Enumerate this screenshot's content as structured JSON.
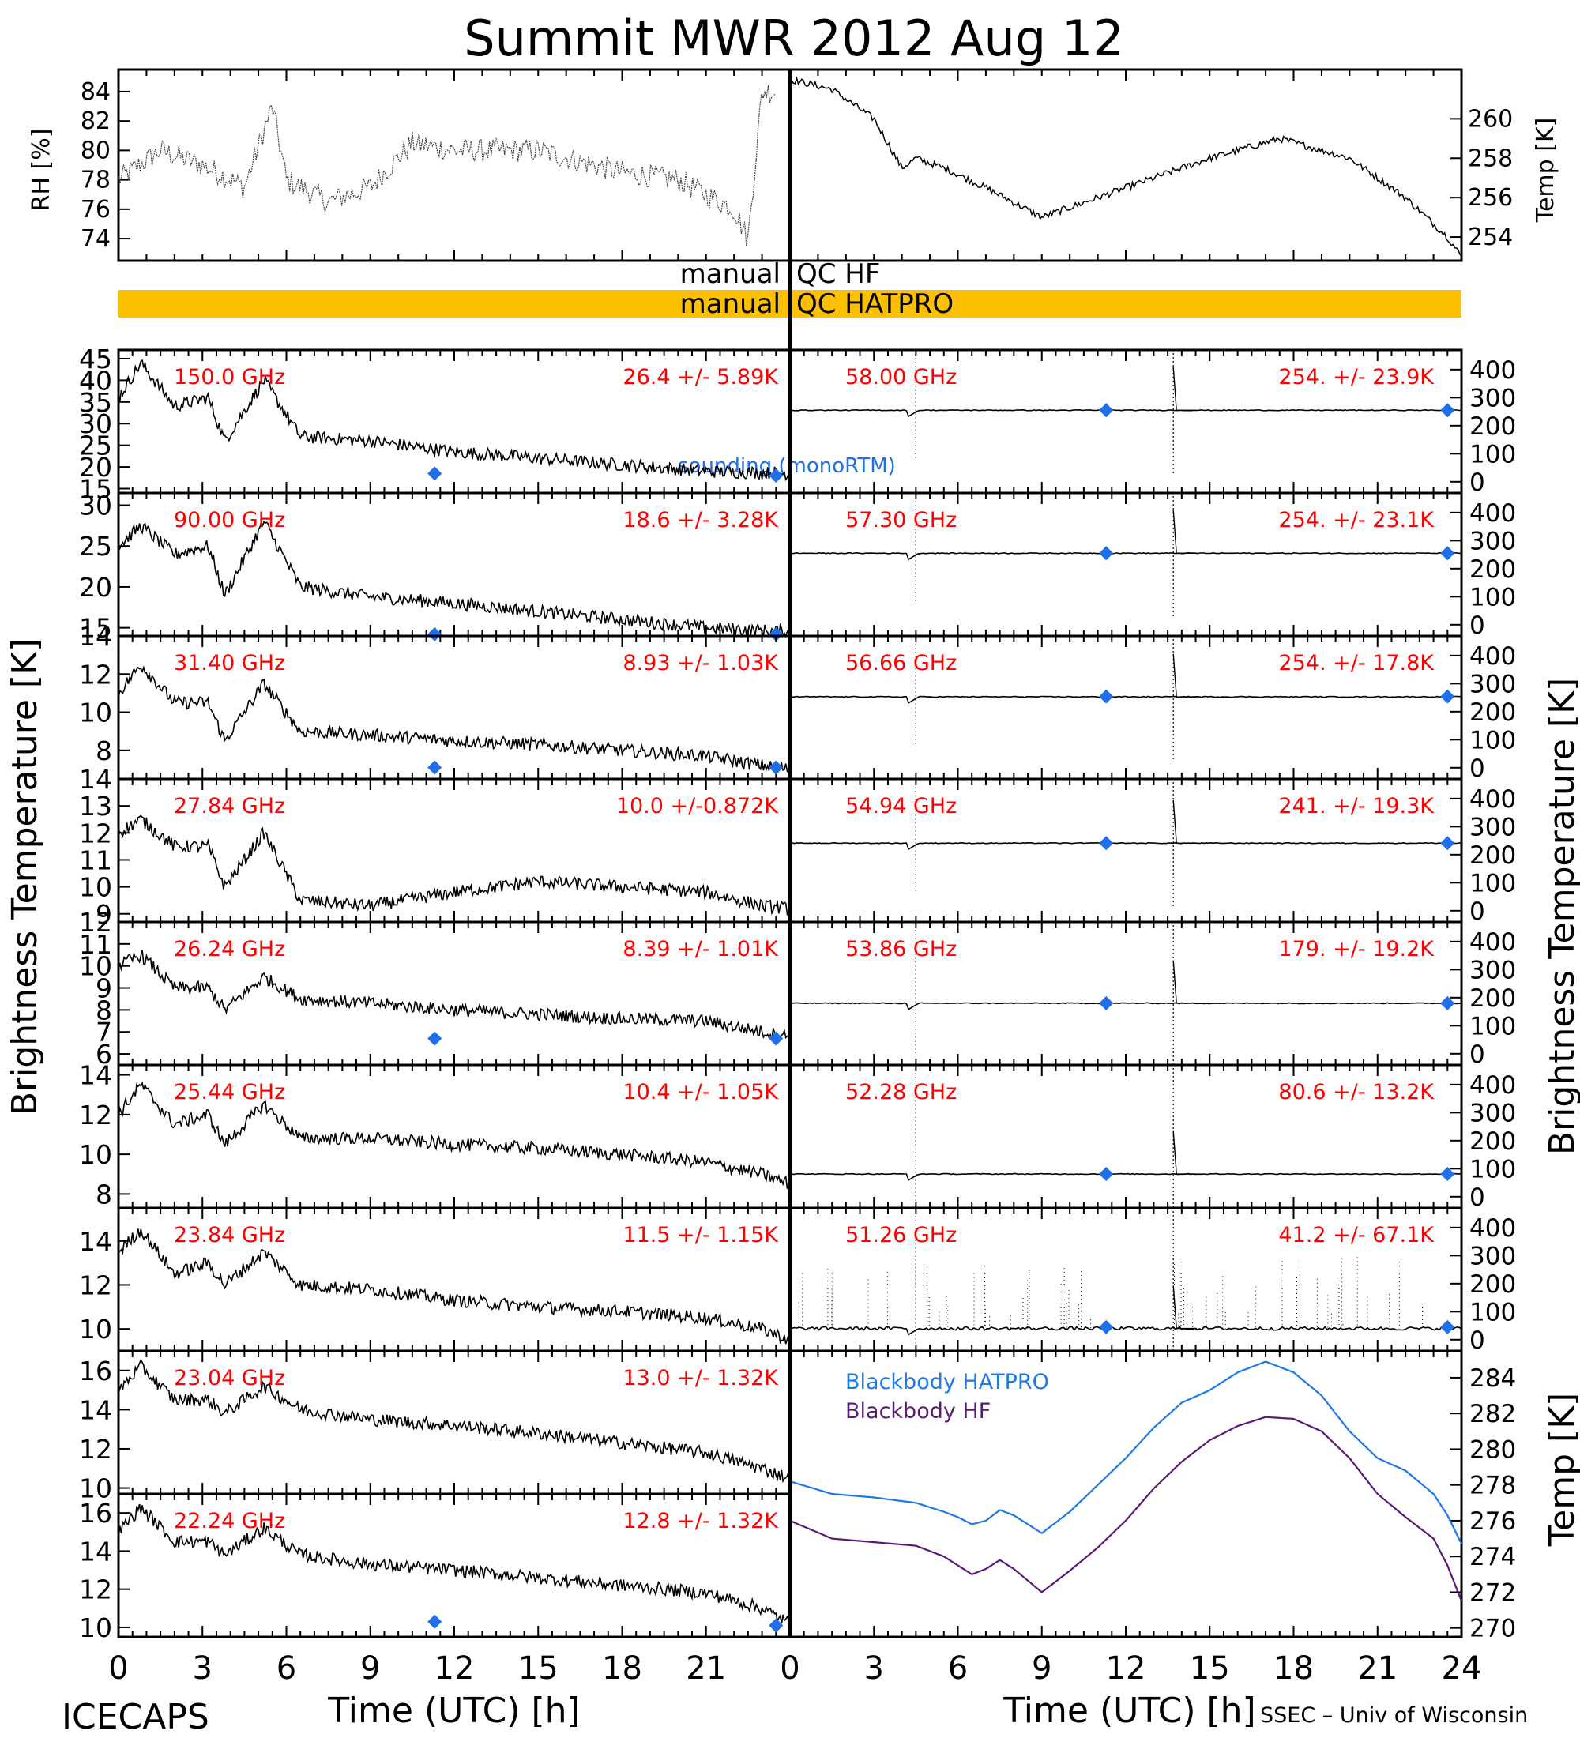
{
  "title": "Summit MWR 2012 Aug 12",
  "footer_left": "ICECAPS",
  "footer_right": "SSEC – Univ of Wisconsin",
  "colors": {
    "label": "#ff0000",
    "sounding": "#1e6fe8",
    "qc_bar": "#fcc000",
    "bb_hatpro": "#1e78e8",
    "bb_hf": "#5a1a78",
    "trace": "#000000"
  },
  "met_panel": {
    "rh_label": "RH [%]",
    "temp_label": "Temp [K]",
    "rh_ticks": [
      "84",
      "82",
      "80",
      "78",
      "76",
      "74"
    ],
    "temp_ticks": [
      "260",
      "258",
      "256",
      "254"
    ]
  },
  "qc": {
    "hf_left": "manual",
    "hf_right": "QC HF",
    "hatpro_left": "manual",
    "hatpro_right": "QC HATPRO"
  },
  "axes": {
    "left_ylabel": "Brightness Temperature [K]",
    "right_ylabel": "Brightness Temperature [K]",
    "bb_ylabel": "Temp [K]",
    "xlabel": "Time (UTC) [h]",
    "left_xticks": [
      "0",
      "3",
      "6",
      "9",
      "12",
      "15",
      "18",
      "21"
    ],
    "right_xticks": [
      "0",
      "3",
      "6",
      "9",
      "12",
      "15",
      "18",
      "21",
      "24"
    ]
  },
  "sounding_label": "sounding (monoRTM)",
  "blackbody": {
    "hatpro_label": "Blackbody HATPRO",
    "hf_label": "Blackbody HF",
    "ticks": [
      "284",
      "282",
      "280",
      "278",
      "276",
      "274",
      "272",
      "270"
    ]
  },
  "chart_data": {
    "type": "line",
    "title": "Summit MWR 2012 Aug 12",
    "xlabel": "Time (UTC) [h]",
    "xlim": [
      0,
      24
    ],
    "met": {
      "rh_ylim": [
        72.5,
        85.5
      ],
      "temp_ylim": [
        252.8,
        262.5
      ],
      "rh_series": {
        "x": [
          0,
          1.5,
          3,
          4.5,
          5.5,
          6,
          7.5,
          9,
          10.5,
          12,
          15,
          18,
          20,
          22,
          22.5,
          23
        ],
        "values": [
          78,
          80,
          79,
          77.5,
          83,
          78,
          76.5,
          77.5,
          80.5,
          80,
          80,
          78.5,
          78,
          76,
          74,
          84
        ]
      },
      "temp_series": {
        "x": [
          0,
          1.5,
          3,
          4,
          4.5,
          5.5,
          7,
          9,
          12,
          15,
          17.5,
          20,
          22,
          23.5,
          24
        ],
        "values": [
          262,
          261.5,
          260,
          257.5,
          258,
          257.5,
          256.5,
          255,
          256.5,
          258,
          259,
          258,
          256,
          254,
          253
        ]
      }
    },
    "left_panels": [
      {
        "freq": "150.0 GHz",
        "stat": "26.4 +/-  5.89K",
        "ylim": [
          14,
          47
        ],
        "ticks": [
          45,
          40,
          35,
          30,
          25,
          20,
          15
        ],
        "x": [
          0,
          0.8,
          2,
          3.2,
          3.8,
          5.2,
          6.5,
          9,
          12,
          15,
          18,
          21,
          24
        ],
        "values": [
          36,
          44,
          34,
          36,
          26,
          40,
          27,
          26,
          23.5,
          22,
          20.5,
          19,
          18.5
        ],
        "sounding": [
          [
            11.3,
            18.5
          ],
          [
            23.5,
            18.0
          ]
        ]
      },
      {
        "freq": "90.00 GHz",
        "stat": "18.6 +/-  3.28K",
        "ylim": [
          14,
          31.5
        ],
        "ticks": [
          30,
          25,
          20,
          15
        ],
        "x": [
          0,
          0.8,
          2,
          3.2,
          3.8,
          5.2,
          6.5,
          9,
          12,
          15,
          18,
          21,
          24
        ],
        "values": [
          25,
          27.5,
          24,
          25,
          19,
          28,
          20,
          18.8,
          18,
          17,
          16,
          15,
          14.5
        ],
        "sounding": [
          [
            11.3,
            14.2
          ],
          [
            23.5,
            14.2
          ]
        ]
      },
      {
        "freq": "31.40 GHz",
        "stat": "8.93 +/- 1.03K",
        "ylim": [
          6.5,
          14
        ],
        "ticks": [
          14,
          12,
          10,
          8
        ],
        "x": [
          0,
          0.8,
          2,
          3.2,
          3.8,
          5.2,
          6.5,
          9,
          12,
          15,
          18,
          21,
          23,
          24
        ],
        "values": [
          11,
          12.5,
          10.5,
          10.5,
          8.5,
          11.5,
          9,
          8.8,
          8.5,
          8.3,
          8,
          7.7,
          7.2,
          7.0
        ],
        "sounding": [
          [
            11.3,
            7.1
          ],
          [
            23.5,
            7.1
          ]
        ]
      },
      {
        "freq": "27.84 GHz",
        "stat": "10.0 +/-0.872K",
        "ylim": [
          8.7,
          14
        ],
        "ticks": [
          14,
          13,
          12,
          11,
          10,
          9
        ],
        "x": [
          0,
          0.8,
          2,
          3.2,
          3.8,
          5.2,
          6.5,
          9,
          12,
          15,
          18,
          21,
          23,
          24
        ],
        "values": [
          12,
          12.5,
          11.5,
          11.5,
          10,
          12,
          9.5,
          9.3,
          9.8,
          10.2,
          10,
          9.8,
          9.3,
          9.2
        ],
        "sounding": []
      },
      {
        "freq": "26.24 GHz",
        "stat": "8.39 +/- 1.01K",
        "ylim": [
          5.5,
          12
        ],
        "ticks": [
          12,
          11,
          10,
          9,
          8,
          7,
          6
        ],
        "x": [
          0,
          0.8,
          2,
          3.2,
          3.8,
          5.2,
          6.5,
          9,
          12,
          15,
          18,
          21,
          23,
          24
        ],
        "values": [
          10,
          10.5,
          9,
          9,
          8,
          9.5,
          8.5,
          8.3,
          8,
          7.8,
          7.6,
          7.5,
          7.0,
          6.8
        ],
        "sounding": [
          [
            11.3,
            6.7
          ],
          [
            23.5,
            6.7
          ]
        ]
      },
      {
        "freq": "25.44 GHz",
        "stat": "10.4 +/- 1.05K",
        "ylim": [
          7.3,
          14.5
        ],
        "ticks": [
          14,
          12,
          10,
          8
        ],
        "x": [
          0,
          0.8,
          2,
          3.2,
          3.8,
          5.2,
          6.5,
          9,
          12,
          15,
          18,
          21,
          23,
          24
        ],
        "values": [
          12,
          13.5,
          11.5,
          12,
          10.5,
          12.5,
          10.8,
          10.8,
          10.5,
          10.3,
          10,
          9.6,
          9,
          8.5
        ],
        "sounding": []
      },
      {
        "freq": "23.84 GHz",
        "stat": "11.5 +/- 1.15K",
        "ylim": [
          9,
          15.5
        ],
        "ticks": [
          14,
          12,
          10
        ],
        "x": [
          0,
          0.8,
          2,
          3.2,
          3.8,
          5.2,
          6.5,
          9,
          12,
          15,
          18,
          21,
          23,
          24
        ],
        "values": [
          13.5,
          14.5,
          12.5,
          13,
          12,
          13.5,
          12,
          11.8,
          11.3,
          11.0,
          10.8,
          10.5,
          10,
          9.5
        ],
        "sounding": []
      },
      {
        "freq": "23.04 GHz",
        "stat": "13.0 +/- 1.32K",
        "ylim": [
          9.7,
          17
        ],
        "ticks": [
          16,
          14,
          12,
          10
        ],
        "x": [
          0,
          0.8,
          2,
          3.2,
          3.8,
          5.2,
          6.5,
          9,
          12,
          15,
          18,
          21,
          23,
          24
        ],
        "values": [
          15,
          16.2,
          14.5,
          14.5,
          13.8,
          15.2,
          14,
          13.5,
          13.2,
          12.8,
          12.3,
          11.8,
          11,
          10.5
        ],
        "sounding": []
      },
      {
        "freq": "22.24 GHz",
        "stat": "12.8 +/- 1.32K",
        "ylim": [
          9.5,
          17
        ],
        "ticks": [
          16,
          14,
          12,
          10
        ],
        "x": [
          0,
          0.8,
          2,
          3.2,
          3.8,
          5.2,
          6.5,
          9,
          12,
          15,
          18,
          21,
          23,
          24
        ],
        "values": [
          15,
          16.3,
          14.5,
          14.5,
          13.8,
          15.2,
          13.8,
          13.3,
          13,
          12.6,
          12.2,
          11.8,
          11,
          10.2
        ],
        "sounding": [
          [
            11.3,
            10.3
          ],
          [
            23.5,
            10.1
          ]
        ]
      }
    ],
    "right_panels": [
      {
        "freq": "58.00 GHz",
        "stat": "254. +/- 23.9K",
        "ylim": [
          -40,
          470
        ],
        "ticks": [
          400,
          300,
          200,
          100,
          0
        ],
        "level": 255,
        "sounding": [
          [
            11.3,
            255
          ],
          [
            23.5,
            255
          ]
        ]
      },
      {
        "freq": "57.30 GHz",
        "stat": "254. +/- 23.1K",
        "ylim": [
          -40,
          470
        ],
        "ticks": [
          400,
          300,
          200,
          100,
          0
        ],
        "level": 255,
        "sounding": [
          [
            11.3,
            255
          ],
          [
            23.5,
            255
          ]
        ]
      },
      {
        "freq": "56.66 GHz",
        "stat": "254. +/- 17.8K",
        "ylim": [
          -40,
          470
        ],
        "ticks": [
          400,
          300,
          200,
          100,
          0
        ],
        "level": 253,
        "sounding": [
          [
            11.3,
            254
          ],
          [
            23.5,
            254
          ]
        ]
      },
      {
        "freq": "54.94 GHz",
        "stat": "241. +/- 19.3K",
        "ylim": [
          -40,
          470
        ],
        "ticks": [
          400,
          300,
          200,
          100,
          0
        ],
        "level": 241,
        "sounding": [
          [
            11.3,
            241
          ],
          [
            23.5,
            241
          ]
        ]
      },
      {
        "freq": "53.86 GHz",
        "stat": "179. +/- 19.2K",
        "ylim": [
          -40,
          470
        ],
        "ticks": [
          400,
          300,
          200,
          100,
          0
        ],
        "level": 180,
        "sounding": [
          [
            11.3,
            180
          ],
          [
            23.5,
            180
          ]
        ]
      },
      {
        "freq": "52.28 GHz",
        "stat": "80.6 +/- 13.2K",
        "ylim": [
          -40,
          470
        ],
        "ticks": [
          400,
          300,
          200,
          100,
          0
        ],
        "level": 81,
        "sounding": [
          [
            11.3,
            81
          ],
          [
            23.5,
            81
          ]
        ]
      },
      {
        "freq": "51.26 GHz",
        "stat": "41.2 +/- 67.1K",
        "ylim": [
          -40,
          470
        ],
        "ticks": [
          400,
          300,
          200,
          100,
          0
        ],
        "level": 40,
        "sounding": [
          [
            11.3,
            45
          ],
          [
            23.5,
            45
          ]
        ]
      }
    ],
    "blackbody": {
      "ylim": [
        269.5,
        285.5
      ],
      "x": [
        0,
        1.5,
        3,
        4.5,
        5.5,
        6,
        6.5,
        7,
        7.5,
        8,
        9,
        10,
        11,
        12,
        13,
        14,
        15,
        16,
        17,
        18,
        19,
        20,
        21,
        22,
        23,
        23.5,
        24
      ],
      "hatpro": [
        278.2,
        277.5,
        277.3,
        277.0,
        276.5,
        276.2,
        275.8,
        276.0,
        276.6,
        276.3,
        275.3,
        276.5,
        278.0,
        279.5,
        281.2,
        282.6,
        283.3,
        284.3,
        284.9,
        284.3,
        283.0,
        281.0,
        279.5,
        278.8,
        277.5,
        276.3,
        274.7
      ],
      "hf": [
        276.0,
        275.0,
        274.8,
        274.6,
        274.0,
        273.5,
        273.0,
        273.3,
        273.8,
        273.3,
        272.0,
        273.2,
        274.5,
        276.0,
        277.8,
        279.3,
        280.5,
        281.3,
        281.8,
        281.7,
        281.0,
        279.5,
        277.5,
        276.2,
        275.0,
        273.5,
        271.5
      ]
    }
  }
}
